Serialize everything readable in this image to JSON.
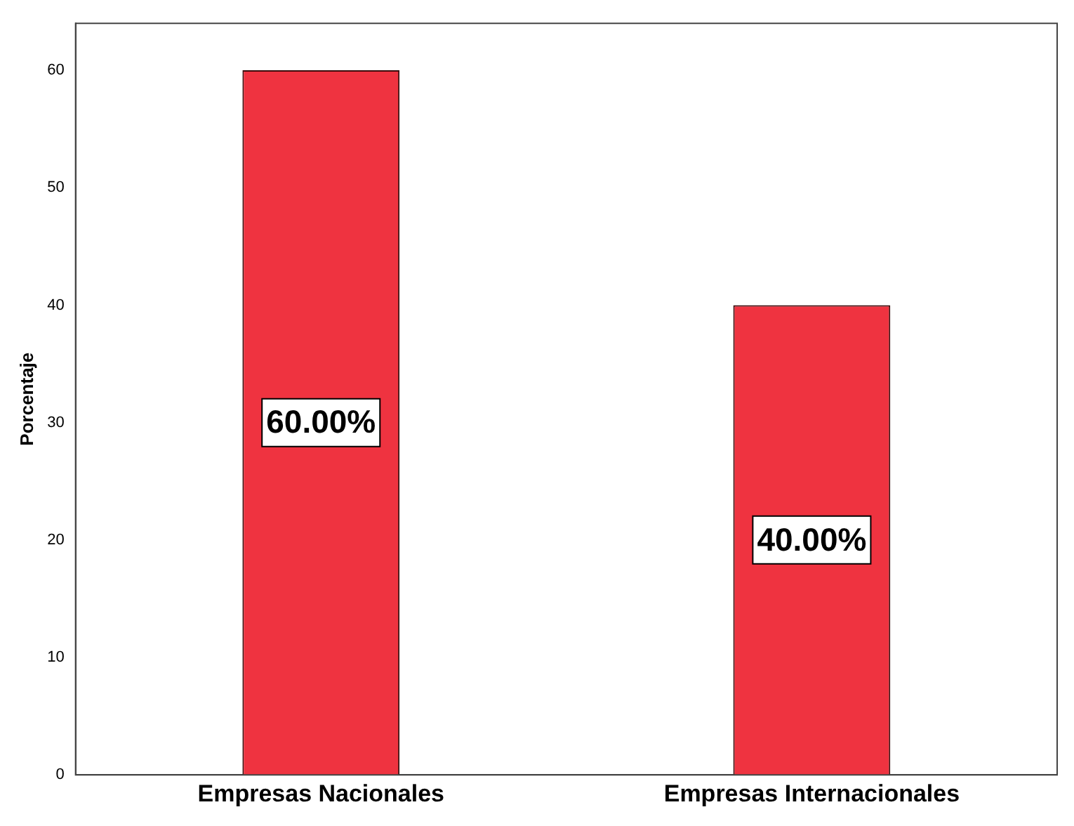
{
  "chart_data": {
    "type": "bar",
    "ylabel": "Porcentaje",
    "categories": [
      "Empresas Nacionales",
      "Empresas Internacionales"
    ],
    "values": [
      60,
      40
    ],
    "color": "#ef3340",
    "value_labels": [
      "60.00%",
      "40.00%"
    ],
    "ylim": [
      0,
      64
    ],
    "yticks": [
      0,
      10,
      20,
      30,
      40,
      50,
      60
    ],
    "grid": false,
    "legend": false
  }
}
